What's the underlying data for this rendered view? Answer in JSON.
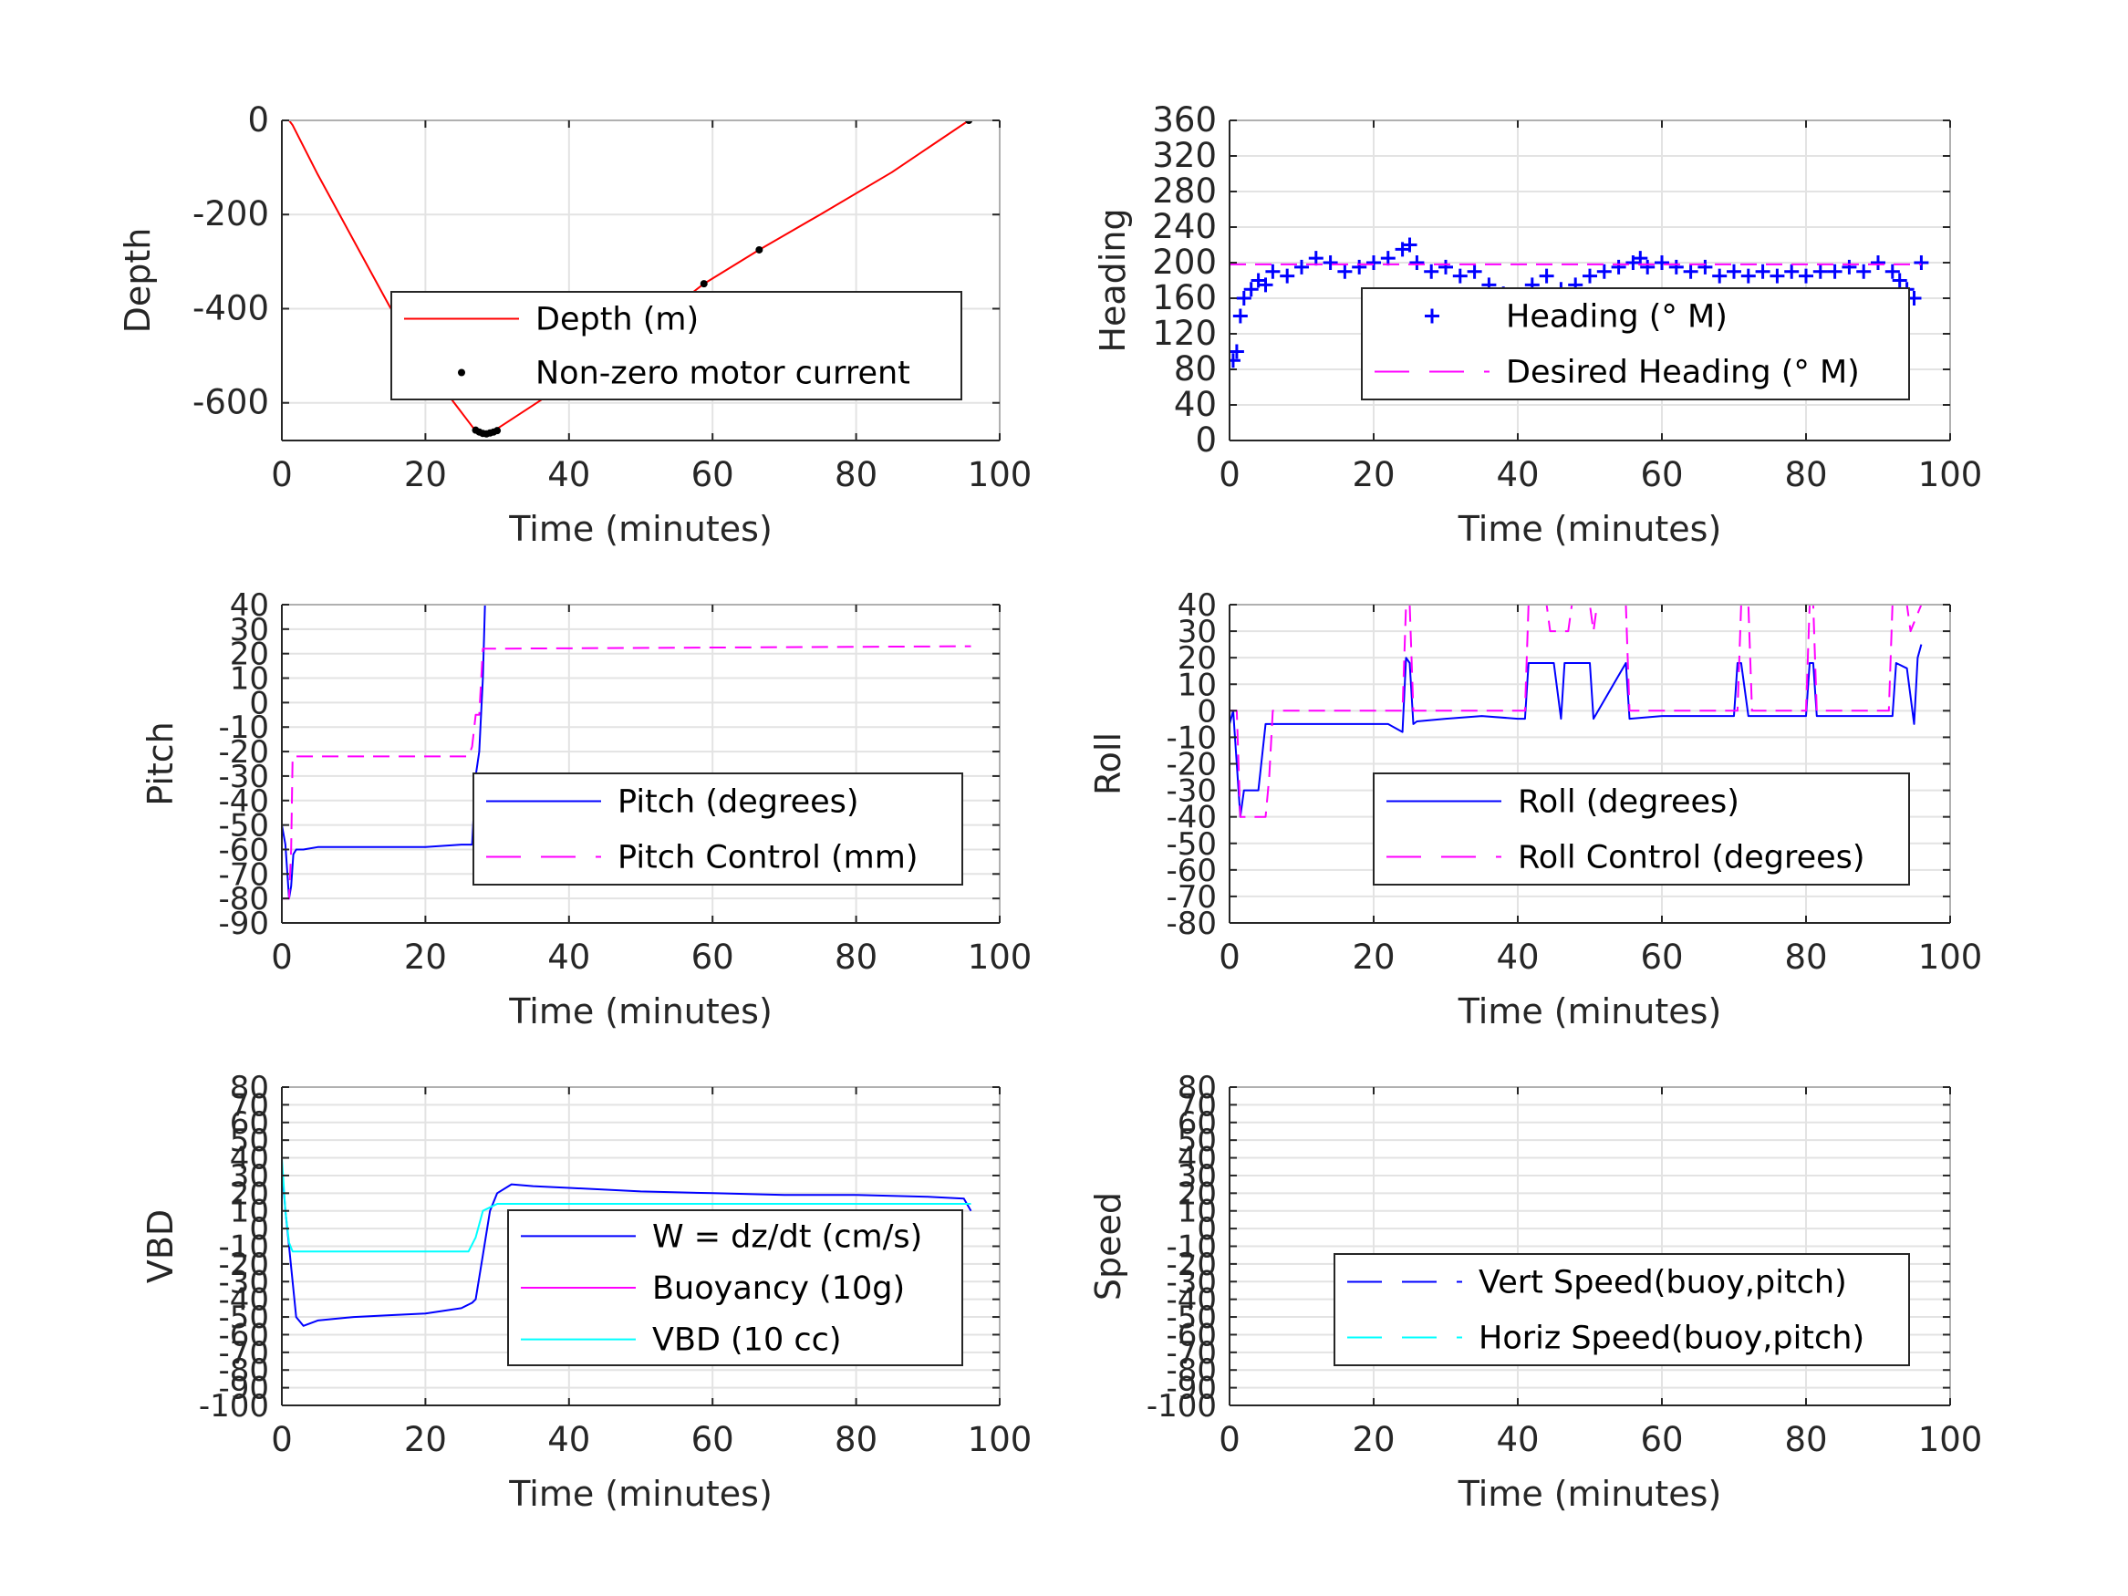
{
  "chart_data": [
    {
      "id": "depth",
      "type": "line",
      "xlabel": "Time (minutes)",
      "ylabel": "Depth",
      "xlim": [
        0,
        100
      ],
      "ylim": [
        -680,
        0
      ],
      "xticks": [
        0,
        20,
        40,
        60,
        80,
        100
      ],
      "yticks": [
        0,
        -200,
        -400,
        -600
      ],
      "grid": true,
      "legend_position": "center-right",
      "series": [
        {
          "name": "Depth (m)",
          "style": "solid",
          "color": "#ff0000",
          "x": [
            0,
            1,
            1.5,
            5,
            10,
            15,
            20,
            25,
            27,
            28,
            29,
            30,
            35,
            40,
            50,
            58.8,
            66.5,
            75,
            85,
            95.7
          ],
          "y": [
            0,
            0,
            -10,
            -115,
            -255,
            -395,
            -520,
            -620,
            -660,
            -665,
            -662,
            -655,
            -605,
            -555,
            -450,
            -347,
            -275,
            -200,
            -110,
            0
          ]
        },
        {
          "name": "Non-zero motor current",
          "style": "markers",
          "color": "#000000",
          "x": [
            27,
            27.5,
            28,
            28.5,
            29,
            29.5,
            30,
            58.8,
            66.5,
            95.7
          ],
          "y": [
            -658,
            -662,
            -665,
            -666,
            -664,
            -662,
            -659,
            -347,
            -275,
            0
          ]
        }
      ]
    },
    {
      "id": "heading",
      "type": "line",
      "xlabel": "Time (minutes)",
      "ylabel": "Heading",
      "xlim": [
        0,
        100
      ],
      "ylim": [
        0,
        360
      ],
      "xticks": [
        0,
        20,
        40,
        60,
        80,
        100
      ],
      "yticks": [
        0,
        40,
        80,
        120,
        160,
        200,
        240,
        280,
        320,
        360
      ],
      "grid": true,
      "legend_position": "center-right",
      "series": [
        {
          "name": "Heading (° M)",
          "style": "plus",
          "color": "#0000ff",
          "x": [
            0.5,
            1,
            1.5,
            2,
            3,
            4,
            5,
            6,
            8,
            10,
            12,
            14,
            16,
            18,
            20,
            22,
            24,
            25,
            26,
            28,
            30,
            32,
            34,
            36,
            38,
            39,
            40,
            42,
            44,
            46,
            48,
            50,
            52,
            54,
            56,
            57,
            58,
            60,
            62,
            64,
            66,
            68,
            70,
            72,
            74,
            76,
            78,
            80,
            82,
            84,
            86,
            88,
            90,
            92,
            93,
            94,
            95,
            96
          ],
          "y": [
            90,
            100,
            140,
            160,
            170,
            180,
            175,
            190,
            185,
            195,
            205,
            200,
            190,
            195,
            200,
            205,
            215,
            220,
            200,
            190,
            195,
            185,
            190,
            175,
            165,
            150,
            160,
            175,
            185,
            170,
            175,
            185,
            190,
            195,
            200,
            205,
            195,
            200,
            195,
            190,
            195,
            185,
            190,
            185,
            190,
            185,
            190,
            185,
            190,
            190,
            195,
            190,
            200,
            190,
            180,
            170,
            160,
            200
          ]
        },
        {
          "name": "Desired Heading (° M)",
          "style": "dashed",
          "color": "#ff00ff",
          "x": [
            0,
            96
          ],
          "y": [
            198,
            198
          ]
        }
      ]
    },
    {
      "id": "pitch",
      "type": "line",
      "xlabel": "Time (minutes)",
      "ylabel": "Pitch",
      "xlim": [
        0,
        100
      ],
      "ylim": [
        -90,
        40
      ],
      "xticks": [
        0,
        20,
        40,
        60,
        80,
        100
      ],
      "yticks": [
        40,
        30,
        20,
        10,
        0,
        -10,
        -20,
        -30,
        -40,
        -50,
        -60,
        -70,
        -80,
        -90
      ],
      "grid": true,
      "legend_position": "center-right",
      "series": [
        {
          "name": "Pitch (degrees)",
          "style": "solid",
          "color": "#0000ff",
          "x": [
            0,
            0.5,
            1,
            1.3,
            1.6,
            2,
            3,
            5,
            10,
            15,
            20,
            25,
            26.5,
            27,
            27.5,
            28,
            28.3
          ],
          "y": [
            -50,
            -58,
            -80,
            -75,
            -62,
            -60,
            -60,
            -59,
            -59,
            -59,
            -59,
            -58,
            -58,
            -30,
            -20,
            10,
            40
          ]
        },
        {
          "name": "Pitch Control (mm)",
          "style": "dashed",
          "color": "#ff00ff",
          "x": [
            0,
            1,
            1.3,
            1.5,
            5,
            10,
            20,
            26,
            26.5,
            27,
            27.5,
            28,
            28.5,
            96
          ],
          "y": [
            -80,
            -80,
            -60,
            -22,
            -22,
            -22,
            -22,
            -22,
            -18,
            -5,
            -5,
            22,
            22,
            23
          ]
        }
      ]
    },
    {
      "id": "roll",
      "type": "line",
      "xlabel": "Time (minutes)",
      "ylabel": "Roll",
      "xlim": [
        0,
        100
      ],
      "ylim": [
        -80,
        40
      ],
      "xticks": [
        0,
        20,
        40,
        60,
        80,
        100
      ],
      "yticks": [
        40,
        30,
        20,
        10,
        0,
        -10,
        -20,
        -30,
        -40,
        -50,
        -60,
        -70,
        -80
      ],
      "grid": true,
      "legend_position": "center-right",
      "series": [
        {
          "name": "Roll (degrees)",
          "style": "solid",
          "color": "#0000ff",
          "x": [
            0,
            0.5,
            1,
            1.5,
            2,
            3,
            4,
            5,
            6,
            7,
            10,
            15,
            20,
            22,
            24,
            24.5,
            25,
            25.5,
            26,
            30,
            35,
            40,
            41,
            41.5,
            45,
            46,
            46.5,
            50,
            50.5,
            55,
            55.5,
            60,
            70,
            70.5,
            71,
            72,
            72.5,
            80,
            80.5,
            81,
            81.5,
            92,
            92.5,
            94,
            95,
            95.5,
            96
          ],
          "y": [
            -5,
            0,
            -20,
            -40,
            -30,
            -30,
            -30,
            -5,
            -5,
            -5,
            -5,
            -5,
            -5,
            -5,
            -8,
            20,
            18,
            -5,
            -4,
            -3,
            -2,
            -3,
            -3,
            18,
            18,
            -3,
            18,
            18,
            -3,
            18,
            -3,
            -2,
            -2,
            18,
            18,
            -2,
            -2,
            -2,
            18,
            18,
            -2,
            -2,
            18,
            16,
            -5,
            20,
            25
          ]
        },
        {
          "name": "Roll Control (degrees)",
          "style": "dashed",
          "color": "#ff00ff",
          "x": [
            0,
            1,
            1.5,
            4,
            5,
            5.5,
            6,
            24,
            24.5,
            25,
            25.5,
            41,
            41.5,
            44,
            44.5,
            47,
            47.5,
            50,
            50.5,
            51,
            55,
            55.5,
            70.5,
            71,
            72,
            72.5,
            80,
            80.5,
            81,
            81.5,
            91.5,
            92,
            94,
            94.5,
            96
          ],
          "y": [
            0,
            0,
            -40,
            -40,
            -40,
            -25,
            0,
            0,
            40,
            40,
            0,
            0,
            40,
            40,
            30,
            30,
            40,
            40,
            30,
            40,
            40,
            0,
            0,
            40,
            40,
            0,
            0,
            40,
            40,
            0,
            0,
            40,
            40,
            30,
            40
          ]
        }
      ]
    },
    {
      "id": "vbd",
      "type": "line",
      "xlabel": "Time (minutes)",
      "ylabel": "VBD",
      "xlim": [
        0,
        100
      ],
      "ylim": [
        -100,
        80
      ],
      "xticks": [
        0,
        20,
        40,
        60,
        80,
        100
      ],
      "yticks": [
        80,
        70,
        60,
        50,
        40,
        30,
        20,
        10,
        0,
        -10,
        -20,
        -30,
        -40,
        -50,
        -60,
        -70,
        -80,
        -90,
        -100
      ],
      "grid": true,
      "legend_position": "bottom-right",
      "series": [
        {
          "name": "W = dz/dt (cm/s)",
          "style": "solid",
          "color": "#0000ff",
          "x": [
            0,
            0.5,
            1,
            1.5,
            2,
            3,
            5,
            10,
            15,
            20,
            25,
            26.5,
            27,
            28,
            29,
            30,
            32,
            35,
            40,
            50,
            60,
            70,
            80,
            90,
            95,
            96
          ],
          "y": [
            35,
            10,
            -10,
            -30,
            -50,
            -55,
            -52,
            -50,
            -49,
            -48,
            -45,
            -42,
            -40,
            -15,
            10,
            20,
            25,
            24,
            23,
            21,
            20,
            19,
            19,
            18,
            17,
            10
          ]
        },
        {
          "name": "Buoyancy (10g)",
          "style": "solid",
          "color": "#ff00ff",
          "x": [],
          "y": []
        },
        {
          "name": "VBD (10 cc)",
          "style": "solid",
          "color": "#00ffff",
          "x": [
            0,
            0.5,
            1,
            1.5,
            2,
            26,
            27,
            28,
            30,
            96
          ],
          "y": [
            40,
            10,
            -8,
            -13,
            -13,
            -13,
            -5,
            10,
            14,
            14
          ]
        }
      ]
    },
    {
      "id": "speed",
      "type": "line",
      "xlabel": "Time (minutes)",
      "ylabel": "Speed",
      "xlim": [
        0,
        100
      ],
      "ylim": [
        -100,
        80
      ],
      "xticks": [
        0,
        20,
        40,
        60,
        80,
        100
      ],
      "yticks": [
        80,
        70,
        60,
        50,
        40,
        30,
        20,
        10,
        0,
        -10,
        -20,
        -30,
        -40,
        -50,
        -60,
        -70,
        -80,
        -90,
        -100
      ],
      "grid": true,
      "legend_position": "bottom-right",
      "series": [
        {
          "name": "Vert Speed(buoy,pitch)",
          "style": "dashed",
          "color": "#0000ff",
          "x": [],
          "y": []
        },
        {
          "name": "Horiz Speed(buoy,pitch)",
          "style": "dashed",
          "color": "#00ffff",
          "x": [],
          "y": []
        }
      ]
    }
  ]
}
